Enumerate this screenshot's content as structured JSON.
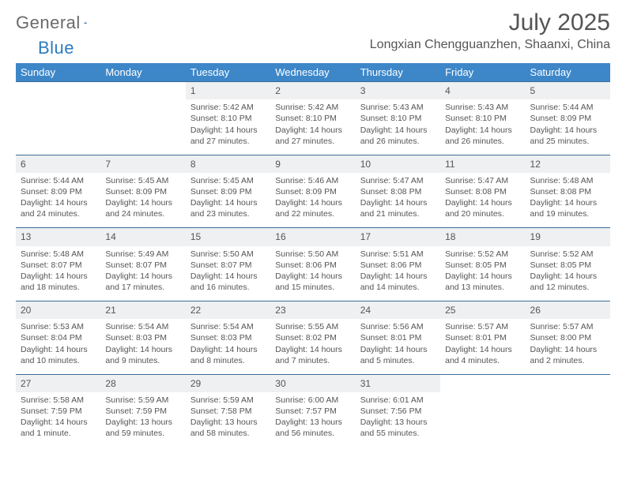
{
  "brand": {
    "name_a": "General",
    "name_b": "Blue"
  },
  "title": "July 2025",
  "location": "Longxian Chengguanzhen, Shaanxi, China",
  "colors": {
    "header_bg": "#3d87c9",
    "header_text": "#ffffff",
    "rule": "#3d6d9a",
    "daynum_bg": "#eef0f1",
    "body_text": "#555555",
    "brand_accent": "#2b7bbf"
  },
  "typography": {
    "title_fontsize": 30,
    "location_fontsize": 16,
    "weekday_fontsize": 13,
    "daynum_fontsize": 12,
    "cell_fontsize": 10.5
  },
  "weekdays": [
    "Sunday",
    "Monday",
    "Tuesday",
    "Wednesday",
    "Thursday",
    "Friday",
    "Saturday"
  ],
  "weeks": [
    [
      null,
      null,
      {
        "n": "1",
        "sr": "5:42 AM",
        "ss": "8:10 PM",
        "dl": "14 hours and 27 minutes."
      },
      {
        "n": "2",
        "sr": "5:42 AM",
        "ss": "8:10 PM",
        "dl": "14 hours and 27 minutes."
      },
      {
        "n": "3",
        "sr": "5:43 AM",
        "ss": "8:10 PM",
        "dl": "14 hours and 26 minutes."
      },
      {
        "n": "4",
        "sr": "5:43 AM",
        "ss": "8:10 PM",
        "dl": "14 hours and 26 minutes."
      },
      {
        "n": "5",
        "sr": "5:44 AM",
        "ss": "8:09 PM",
        "dl": "14 hours and 25 minutes."
      }
    ],
    [
      {
        "n": "6",
        "sr": "5:44 AM",
        "ss": "8:09 PM",
        "dl": "14 hours and 24 minutes."
      },
      {
        "n": "7",
        "sr": "5:45 AM",
        "ss": "8:09 PM",
        "dl": "14 hours and 24 minutes."
      },
      {
        "n": "8",
        "sr": "5:45 AM",
        "ss": "8:09 PM",
        "dl": "14 hours and 23 minutes."
      },
      {
        "n": "9",
        "sr": "5:46 AM",
        "ss": "8:09 PM",
        "dl": "14 hours and 22 minutes."
      },
      {
        "n": "10",
        "sr": "5:47 AM",
        "ss": "8:08 PM",
        "dl": "14 hours and 21 minutes."
      },
      {
        "n": "11",
        "sr": "5:47 AM",
        "ss": "8:08 PM",
        "dl": "14 hours and 20 minutes."
      },
      {
        "n": "12",
        "sr": "5:48 AM",
        "ss": "8:08 PM",
        "dl": "14 hours and 19 minutes."
      }
    ],
    [
      {
        "n": "13",
        "sr": "5:48 AM",
        "ss": "8:07 PM",
        "dl": "14 hours and 18 minutes."
      },
      {
        "n": "14",
        "sr": "5:49 AM",
        "ss": "8:07 PM",
        "dl": "14 hours and 17 minutes."
      },
      {
        "n": "15",
        "sr": "5:50 AM",
        "ss": "8:07 PM",
        "dl": "14 hours and 16 minutes."
      },
      {
        "n": "16",
        "sr": "5:50 AM",
        "ss": "8:06 PM",
        "dl": "14 hours and 15 minutes."
      },
      {
        "n": "17",
        "sr": "5:51 AM",
        "ss": "8:06 PM",
        "dl": "14 hours and 14 minutes."
      },
      {
        "n": "18",
        "sr": "5:52 AM",
        "ss": "8:05 PM",
        "dl": "14 hours and 13 minutes."
      },
      {
        "n": "19",
        "sr": "5:52 AM",
        "ss": "8:05 PM",
        "dl": "14 hours and 12 minutes."
      }
    ],
    [
      {
        "n": "20",
        "sr": "5:53 AM",
        "ss": "8:04 PM",
        "dl": "14 hours and 10 minutes."
      },
      {
        "n": "21",
        "sr": "5:54 AM",
        "ss": "8:03 PM",
        "dl": "14 hours and 9 minutes."
      },
      {
        "n": "22",
        "sr": "5:54 AM",
        "ss": "8:03 PM",
        "dl": "14 hours and 8 minutes."
      },
      {
        "n": "23",
        "sr": "5:55 AM",
        "ss": "8:02 PM",
        "dl": "14 hours and 7 minutes."
      },
      {
        "n": "24",
        "sr": "5:56 AM",
        "ss": "8:01 PM",
        "dl": "14 hours and 5 minutes."
      },
      {
        "n": "25",
        "sr": "5:57 AM",
        "ss": "8:01 PM",
        "dl": "14 hours and 4 minutes."
      },
      {
        "n": "26",
        "sr": "5:57 AM",
        "ss": "8:00 PM",
        "dl": "14 hours and 2 minutes."
      }
    ],
    [
      {
        "n": "27",
        "sr": "5:58 AM",
        "ss": "7:59 PM",
        "dl": "14 hours and 1 minute."
      },
      {
        "n": "28",
        "sr": "5:59 AM",
        "ss": "7:59 PM",
        "dl": "13 hours and 59 minutes."
      },
      {
        "n": "29",
        "sr": "5:59 AM",
        "ss": "7:58 PM",
        "dl": "13 hours and 58 minutes."
      },
      {
        "n": "30",
        "sr": "6:00 AM",
        "ss": "7:57 PM",
        "dl": "13 hours and 56 minutes."
      },
      {
        "n": "31",
        "sr": "6:01 AM",
        "ss": "7:56 PM",
        "dl": "13 hours and 55 minutes."
      },
      null,
      null
    ]
  ],
  "labels": {
    "sunrise": "Sunrise:",
    "sunset": "Sunset:",
    "daylight": "Daylight:"
  }
}
